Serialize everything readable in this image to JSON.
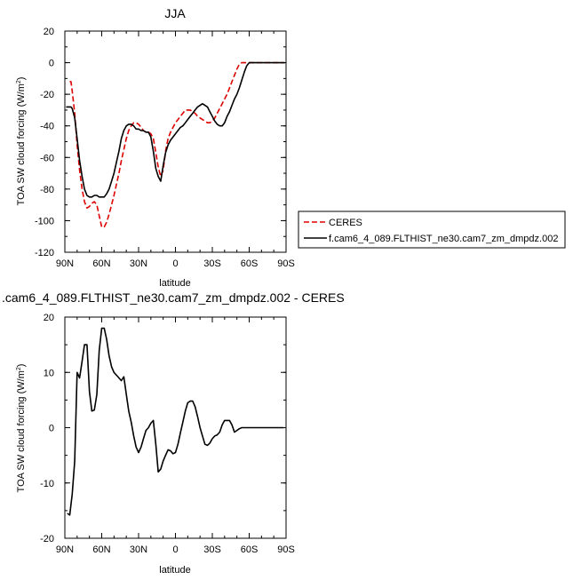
{
  "chart_data": [
    {
      "type": "line",
      "title": "JJA",
      "xlabel": "latitude",
      "ylabel": "TOA SW cloud forcing (W/m",
      "ylabel_sup": "2",
      "ylabel_close": ")",
      "xlim": [
        90,
        -90
      ],
      "ylim": [
        -120,
        20
      ],
      "xticks": [
        90,
        60,
        30,
        0,
        -30,
        -60,
        -90
      ],
      "xticklabels": [
        "90N",
        "60N",
        "30N",
        "0",
        "30S",
        "60S",
        "90S"
      ],
      "yticks": [
        -120,
        -100,
        -80,
        -60,
        -40,
        -20,
        0,
        20
      ],
      "yticklabels": [
        "-120",
        "-100",
        "-80",
        "-60",
        "-40",
        "-20",
        "0",
        "20"
      ],
      "legend_position": "right",
      "series": [
        {
          "name": "CERES",
          "color": "#dd0000",
          "dash": true,
          "x": [
            86,
            85,
            84,
            82,
            80,
            78,
            76,
            74,
            72,
            70,
            68,
            66,
            64,
            62,
            60,
            58,
            56,
            54,
            52,
            50,
            48,
            46,
            44,
            42,
            40,
            38,
            36,
            34,
            32,
            30,
            28,
            26,
            24,
            22,
            20,
            18,
            16,
            14,
            12,
            10,
            8,
            6,
            4,
            2,
            0,
            -2,
            -4,
            -6,
            -8,
            -10,
            -12,
            -14,
            -16,
            -18,
            -20,
            -22,
            -24,
            -26,
            -28,
            -30,
            -32,
            -34,
            -36,
            -38,
            -40,
            -42,
            -44,
            -46,
            -48,
            -50,
            -52,
            -54,
            -56,
            -58,
            -60,
            -62,
            -64,
            -66,
            -68,
            -70,
            -72,
            -74,
            -76,
            -78,
            -80,
            -82,
            -84,
            -86,
            -88
          ],
          "y": [
            -12,
            -12,
            -18,
            -32,
            -52,
            -68,
            -80,
            -88,
            -92,
            -91,
            -89,
            -88,
            -90,
            -97,
            -104,
            -104,
            -101,
            -96,
            -90,
            -84,
            -77,
            -70,
            -62,
            -55,
            -48,
            -43,
            -40,
            -38,
            -38,
            -39,
            -41,
            -43,
            -44,
            -44,
            -45,
            -48,
            -57,
            -66,
            -72,
            -68,
            -56,
            -48,
            -44,
            -41,
            -38,
            -36,
            -34,
            -32,
            -30,
            -30,
            -30,
            -31,
            -32,
            -34,
            -35,
            -36,
            -37,
            -38,
            -38,
            -37,
            -35,
            -32,
            -29,
            -26,
            -23,
            -20,
            -16,
            -12,
            -8,
            -4,
            -1,
            0,
            0,
            0,
            0,
            0,
            0,
            0,
            0,
            0,
            0,
            0,
            0,
            0,
            0,
            0,
            0,
            0,
            0
          ]
        },
        {
          "name": "f.cam6_4_089.FLTHIST_ne30.cam7_zm_dmpdz.002",
          "color": "#000000",
          "dash": false,
          "x": [
            89,
            87,
            85,
            84,
            82,
            80,
            78,
            76,
            74,
            72,
            70,
            68,
            66,
            64,
            62,
            60,
            58,
            56,
            54,
            52,
            50,
            48,
            46,
            44,
            42,
            40,
            38,
            36,
            34,
            32,
            30,
            28,
            26,
            24,
            22,
            20,
            18,
            16,
            14,
            12,
            10,
            8,
            6,
            4,
            2,
            0,
            -2,
            -4,
            -6,
            -8,
            -10,
            -12,
            -14,
            -16,
            -18,
            -20,
            -22,
            -24,
            -26,
            -28,
            -30,
            -32,
            -34,
            -36,
            -38,
            -40,
            -42,
            -44,
            -46,
            -48,
            -50,
            -52,
            -54,
            -56,
            -58,
            -60,
            -62,
            -64,
            -66,
            -68,
            -70,
            -72,
            -74,
            -76,
            -78,
            -80,
            -82,
            -84,
            -86,
            -88,
            -89
          ],
          "y": [
            -28,
            -28,
            -28,
            -29,
            -35,
            -48,
            -62,
            -72,
            -80,
            -84,
            -85,
            -85,
            -84,
            -84,
            -85,
            -85,
            -85,
            -83,
            -80,
            -75,
            -70,
            -63,
            -56,
            -48,
            -43,
            -40,
            -39,
            -39,
            -40,
            -42,
            -42,
            -43,
            -43,
            -44,
            -44,
            -47,
            -56,
            -67,
            -72,
            -75,
            -65,
            -57,
            -52,
            -49,
            -47,
            -45,
            -43,
            -41,
            -40,
            -38,
            -36,
            -34,
            -32,
            -30,
            -28,
            -27,
            -26,
            -27,
            -28,
            -31,
            -34,
            -37,
            -39,
            -40,
            -40,
            -38,
            -34,
            -31,
            -27,
            -23,
            -20,
            -16,
            -11,
            -6,
            -2,
            0,
            0,
            0,
            0,
            0,
            0,
            0,
            0,
            0,
            0,
            0,
            0,
            0,
            0,
            0,
            0
          ]
        }
      ]
    },
    {
      "type": "line",
      "title": ".cam6_4_089.FLTHIST_ne30.cam7_zm_dmpdz.002 - CERES",
      "xlabel": "latitude",
      "ylabel": "TOA SW cloud forcing (W/m",
      "ylabel_sup": "2",
      "ylabel_close": ")",
      "xlim": [
        90,
        -90
      ],
      "ylim": [
        -20,
        20
      ],
      "xticks": [
        90,
        60,
        30,
        0,
        -30,
        -60,
        -90
      ],
      "xticklabels": [
        "90N",
        "60N",
        "30N",
        "0",
        "30S",
        "60S",
        "90S"
      ],
      "yticks": [
        -20,
        -10,
        0,
        10,
        20
      ],
      "yticklabels": [
        "-20",
        "-10",
        "0",
        "10",
        "20"
      ],
      "series": [
        {
          "color": "#000000",
          "dash": false,
          "x": [
            88,
            86,
            84,
            82,
            80,
            78,
            76,
            74,
            72,
            70,
            68,
            66,
            64,
            62,
            60,
            58,
            56,
            54,
            52,
            50,
            48,
            46,
            44,
            42,
            40,
            38,
            36,
            34,
            32,
            30,
            28,
            26,
            24,
            22,
            20,
            18,
            16,
            14,
            12,
            10,
            8,
            6,
            4,
            2,
            0,
            -2,
            -4,
            -6,
            -8,
            -10,
            -12,
            -14,
            -16,
            -18,
            -20,
            -22,
            -24,
            -26,
            -28,
            -30,
            -32,
            -34,
            -36,
            -38,
            -40,
            -42,
            -44,
            -46,
            -48,
            -50,
            -52,
            -54,
            -56,
            -58,
            -60,
            -62,
            -64,
            -66,
            -68,
            -70,
            -72,
            -74,
            -76,
            -78,
            -80,
            -82,
            -84,
            -86,
            -88
          ],
          "y": [
            -15.5,
            -15.8,
            -12,
            -6,
            10,
            9,
            12,
            15,
            15,
            6.5,
            3,
            3.2,
            6,
            14,
            18,
            18,
            16,
            13,
            11,
            10,
            9.5,
            9,
            8.5,
            9.2,
            6,
            3,
            1,
            -1.5,
            -3.5,
            -4.5,
            -3.5,
            -2,
            -0.5,
            0,
            0.8,
            1.3,
            -3,
            -8,
            -7.5,
            -6,
            -5,
            -4,
            -4.2,
            -4.7,
            -4.5,
            -3,
            -1,
            1,
            3,
            4.5,
            4.8,
            4.8,
            3.8,
            2,
            0,
            -1.5,
            -3,
            -3.2,
            -2.8,
            -2,
            -1.5,
            -1.3,
            -0.8,
            0.5,
            1.3,
            1.3,
            1.3,
            0.5,
            -0.8,
            -0.5,
            -0.2,
            0,
            0,
            0,
            0,
            0,
            0,
            0,
            0,
            0,
            0,
            0,
            0,
            0,
            0,
            0,
            0,
            0,
            0
          ]
        }
      ]
    }
  ]
}
